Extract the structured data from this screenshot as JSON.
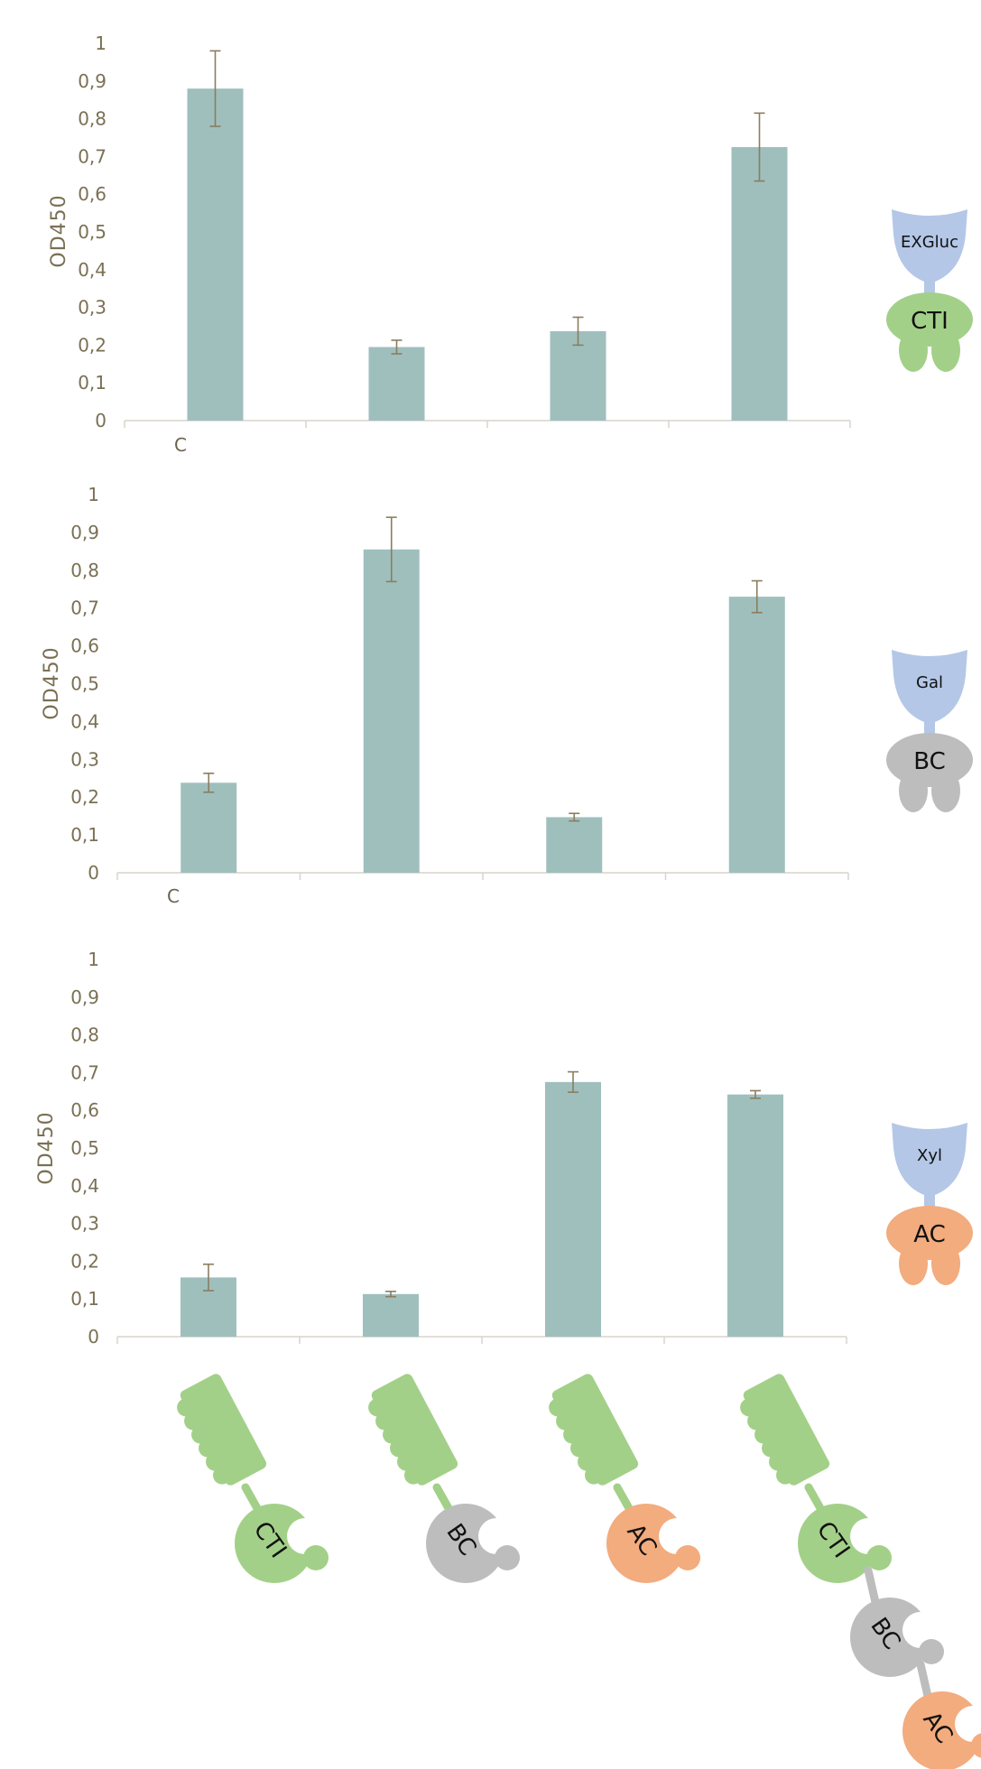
{
  "chart_data": [
    {
      "type": "bar",
      "ylabel": "OD450",
      "ylim": [
        0,
        1
      ],
      "yticks": [
        "0",
        "0,1",
        "0,2",
        "0,3",
        "0,4",
        "0,5",
        "0,6",
        "0,7",
        "0,8",
        "0,9",
        "1"
      ],
      "categories": [
        "C",
        "",
        "",
        ""
      ],
      "values": [
        0.88,
        0.195,
        0.237,
        0.725
      ],
      "errors": [
        0.1,
        0.018,
        0.037,
        0.09
      ],
      "grid": false,
      "legend_icon": {
        "top_label": "EXGluc",
        "bottom_label": "CTI",
        "bottom_color": "#a3d088"
      }
    },
    {
      "type": "bar",
      "ylabel": "OD450",
      "ylim": [
        0,
        1
      ],
      "yticks": [
        "0",
        "0,1",
        "0,2",
        "0,3",
        "0,4",
        "0,5",
        "0,6",
        "0,7",
        "0,8",
        "0,9",
        "1"
      ],
      "categories": [
        "C",
        "",
        "",
        ""
      ],
      "values": [
        0.238,
        0.855,
        0.147,
        0.73
      ],
      "errors": [
        0.025,
        0.085,
        0.01,
        0.042
      ],
      "grid": false,
      "legend_icon": {
        "top_label": "Gal",
        "bottom_label": "BC",
        "bottom_color": "#bdbdbd"
      }
    },
    {
      "type": "bar",
      "ylabel": "OD450",
      "ylim": [
        0,
        1
      ],
      "yticks": [
        "0",
        "0,1",
        "0,2",
        "0,3",
        "0,4",
        "0,5",
        "0,6",
        "0,7",
        "0,8",
        "0,9",
        "1"
      ],
      "categories": [
        "",
        "",
        "",
        ""
      ],
      "values": [
        0.157,
        0.113,
        0.675,
        0.642
      ],
      "errors": [
        0.035,
        0.007,
        0.027,
        0.01
      ],
      "grid": false,
      "legend_icon": {
        "top_label": "Xyl",
        "bottom_label": "AC",
        "bottom_color": "#f2ac7e"
      }
    }
  ],
  "constructs": [
    {
      "modules": [
        {
          "label": "CTI",
          "color": "#a3d088"
        }
      ]
    },
    {
      "modules": [
        {
          "label": "BC",
          "color": "#bdbdbd"
        }
      ]
    },
    {
      "modules": [
        {
          "label": "AC",
          "color": "#f2ac7e"
        }
      ]
    },
    {
      "modules": [
        {
          "label": "CTI",
          "color": "#a3d088"
        },
        {
          "label": "BC",
          "color": "#bdbdbd"
        },
        {
          "label": "AC",
          "color": "#f2ac7e"
        }
      ]
    }
  ],
  "colors": {
    "bar": "#9fbfbd",
    "error_bar": "#8b7d5e",
    "axis_text": "#7a7054",
    "enzyme_blue": "#b4c7e7",
    "scaffold_green": "#a3d088"
  }
}
